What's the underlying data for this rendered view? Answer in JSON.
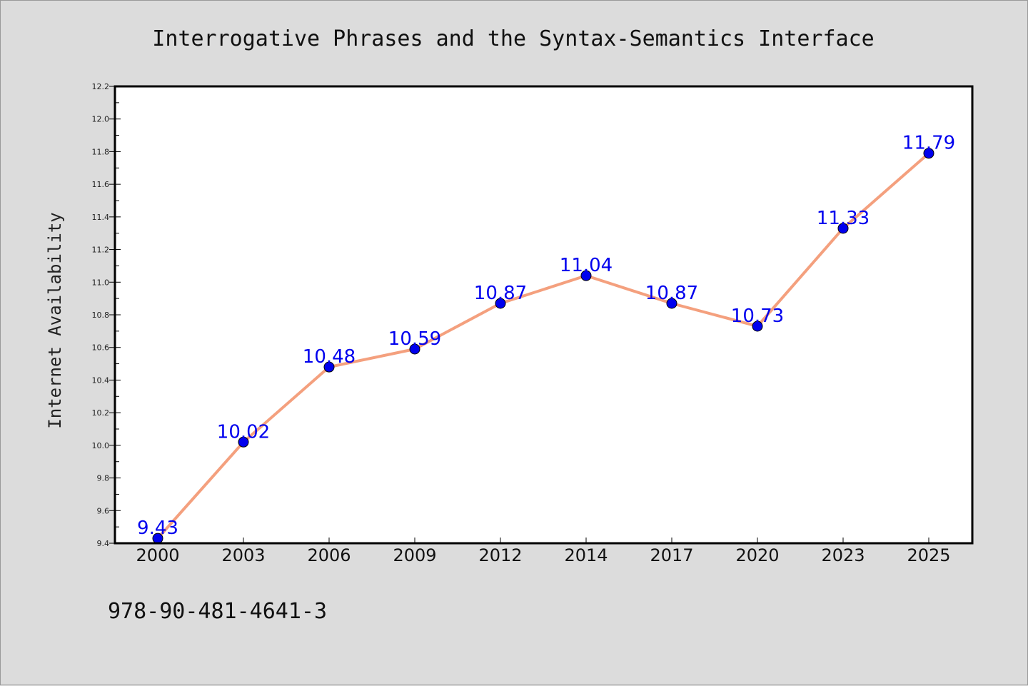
{
  "chart_data": {
    "type": "line",
    "title": "Interrogative Phrases and the Syntax-Semantics Interface",
    "xlabel": "",
    "ylabel": "Internet Availability",
    "categories": [
      "2000",
      "2003",
      "2006",
      "2009",
      "2012",
      "2014",
      "2017",
      "2020",
      "2023",
      "2025"
    ],
    "series": [
      {
        "values": [
          9.43,
          10.02,
          10.48,
          10.59,
          10.87,
          11.04,
          10.87,
          10.73,
          11.33,
          11.79
        ]
      }
    ],
    "data_labels": [
      "9.43",
      "10.02",
      "10.48",
      "10.59",
      "10.87",
      "11.04",
      "10.87",
      "10.73",
      "11.33",
      "11.79"
    ],
    "ylim": [
      9.4,
      12.2
    ],
    "yticks": [
      "9.4",
      "9.6",
      "9.8",
      "10.0",
      "10.2",
      "10.4",
      "10.6",
      "10.8",
      "11.0",
      "11.2",
      "11.4",
      "11.6",
      "11.8",
      "12.0",
      "12.2"
    ],
    "grid": false,
    "legend": "none",
    "colors": {
      "line": "#f4a07e",
      "marker": "#0000ee",
      "data_label": "#0000ee",
      "background": "#dcdcdc",
      "plot_area": "#ffffff"
    }
  },
  "footer": {
    "isbn": "978-90-481-4641-3"
  }
}
